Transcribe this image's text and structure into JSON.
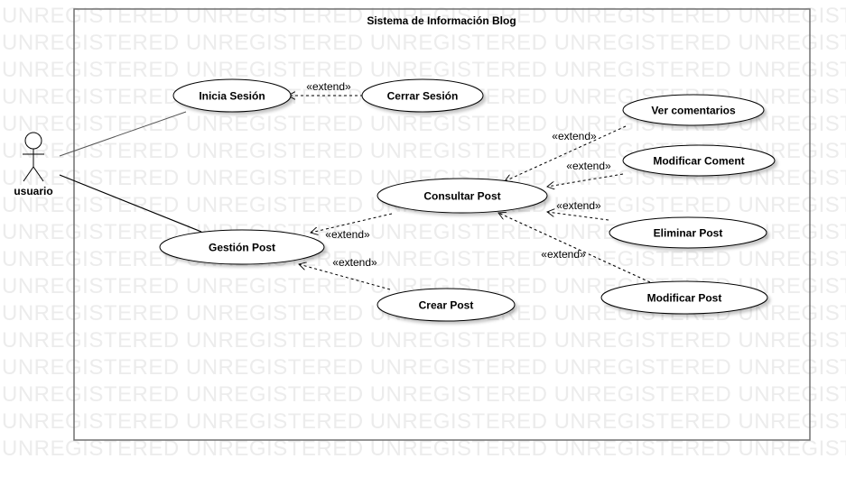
{
  "watermark": {
    "text": "UNREGISTERED"
  },
  "system": {
    "title": "Sistema de Información Blog"
  },
  "actor": {
    "label": "usuario",
    "icon": "stick-figure-icon"
  },
  "use_cases": [
    {
      "id": "inicia",
      "label": "Inicia Sesión"
    },
    {
      "id": "cerrar",
      "label": "Cerrar Sesión"
    },
    {
      "id": "vercom",
      "label": "Ver comentarios"
    },
    {
      "id": "modcom",
      "label": "Modificar Coment"
    },
    {
      "id": "consultar",
      "label": "Consultar Post"
    },
    {
      "id": "eliminar",
      "label": "Eliminar Post"
    },
    {
      "id": "gestion",
      "label": "Gestión Post"
    },
    {
      "id": "modpost",
      "label": "Modificar Post"
    },
    {
      "id": "crear",
      "label": "Crear Post"
    }
  ],
  "associations": [
    {
      "from": "usuario",
      "to": "inicia"
    },
    {
      "from": "usuario",
      "to": "gestion"
    }
  ],
  "extends": [
    {
      "from": "cerrar",
      "to": "inicia",
      "label": "«extend»"
    },
    {
      "from": "vercom",
      "to": "consultar",
      "label": "«extend»"
    },
    {
      "from": "modcom",
      "to": "consultar",
      "label": "«extend»"
    },
    {
      "from": "eliminar",
      "to": "consultar",
      "label": "«extend»"
    },
    {
      "from": "modpost",
      "to": "consultar",
      "label": "«extend»"
    },
    {
      "from": "consultar",
      "to": "gestion",
      "label": "«extend»"
    },
    {
      "from": "crear",
      "to": "gestion",
      "label": "«extend»"
    }
  ]
}
